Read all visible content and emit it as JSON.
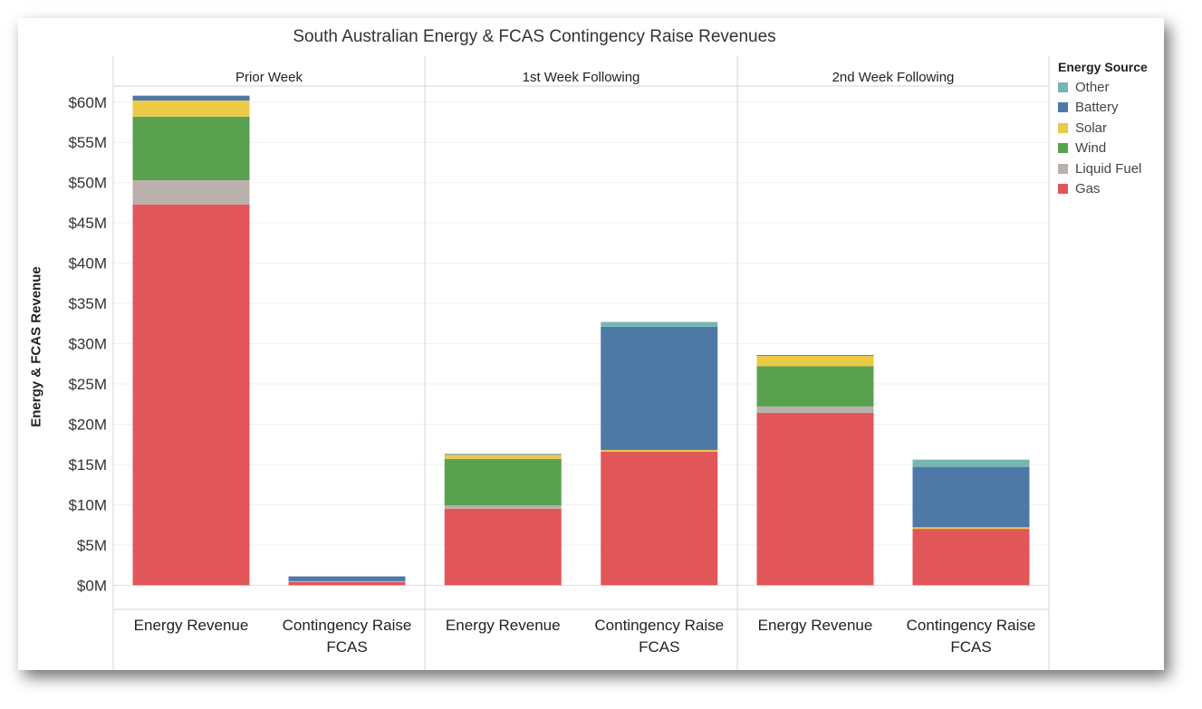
{
  "chart_data": {
    "type": "bar",
    "stacked": true,
    "title": "South Australian Energy & FCAS Contingency Raise Revenues",
    "ylabel": "Energy & FCAS Revenue",
    "ylim": [
      -3,
      62
    ],
    "yticks": [
      0,
      5,
      10,
      15,
      20,
      25,
      30,
      35,
      40,
      45,
      50,
      55,
      60
    ],
    "ytick_labels": [
      "$0M",
      "$5M",
      "$10M",
      "$15M",
      "$20M",
      "$25M",
      "$30M",
      "$35M",
      "$40M",
      "$45M",
      "$50M",
      "$55M",
      "$60M"
    ],
    "panels": [
      "Prior Week",
      "1st Week Following",
      "2nd Week Following"
    ],
    "categories": [
      "Energy Revenue",
      "Contingency Raise FCAS"
    ],
    "category_lines": [
      [
        "Energy Revenue"
      ],
      [
        "Contingency Raise",
        "FCAS"
      ]
    ],
    "legend_title": "Energy Source",
    "series": [
      {
        "name": "Gas",
        "color": "#e15759",
        "values": [
          [
            47.3,
            0.4
          ],
          [
            9.5,
            16.6
          ],
          [
            21.4,
            7.0
          ]
        ]
      },
      {
        "name": "Liquid Fuel",
        "color": "#bab0ac",
        "values": [
          [
            3.0,
            0.1
          ],
          [
            0.4,
            0.0
          ],
          [
            0.8,
            0.0
          ]
        ]
      },
      {
        "name": "Wind",
        "color": "#59a14f",
        "values": [
          [
            7.9,
            0.0
          ],
          [
            5.8,
            0.0
          ],
          [
            5.0,
            0.0
          ]
        ]
      },
      {
        "name": "Solar",
        "color": "#edc948",
        "values": [
          [
            2.0,
            0.0
          ],
          [
            0.5,
            0.2
          ],
          [
            1.3,
            0.2
          ]
        ]
      },
      {
        "name": "Battery",
        "color": "#4e79a7",
        "values": [
          [
            0.6,
            0.6
          ],
          [
            0.1,
            15.3
          ],
          [
            0.1,
            7.5
          ]
        ]
      },
      {
        "name": "Other",
        "color": "#76b7b2",
        "values": [
          [
            0.0,
            0.0
          ],
          [
            0.0,
            0.6
          ],
          [
            0.0,
            0.9
          ]
        ]
      }
    ],
    "legend_order": [
      "Other",
      "Battery",
      "Solar",
      "Wind",
      "Liquid Fuel",
      "Gas"
    ],
    "grid": true,
    "legend_position": "right"
  }
}
